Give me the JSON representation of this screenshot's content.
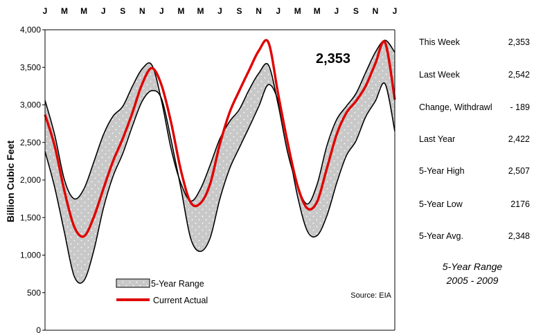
{
  "chart_data": {
    "type": "area",
    "title": "",
    "ylabel": "Billion Cubic Feet",
    "xlabel": "",
    "x_tick_labels": [
      "J",
      "M",
      "M",
      "J",
      "S",
      "N",
      "J",
      "M",
      "M",
      "J",
      "S",
      "N",
      "J",
      "M",
      "M",
      "J",
      "S",
      "N",
      "J"
    ],
    "y_ticks": [
      "0",
      "500",
      "1,000",
      "1,500",
      "2,000",
      "2,500",
      "3,000",
      "3,500",
      "4,000"
    ],
    "ylim": [
      0,
      4000
    ],
    "months_span": 36,
    "grid": false,
    "legend_position": "bottom-left",
    "series": [
      {
        "name": "5-Year Range",
        "kind": "band",
        "fill": "#c8c8c8",
        "upper": [
          [
            0,
            3060
          ],
          [
            1,
            2600
          ],
          [
            2,
            2000
          ],
          [
            3,
            1750
          ],
          [
            4,
            1880
          ],
          [
            5,
            2230
          ],
          [
            6,
            2600
          ],
          [
            7,
            2850
          ],
          [
            8,
            2980
          ],
          [
            9,
            3250
          ],
          [
            10,
            3480
          ],
          [
            11,
            3530
          ],
          [
            12,
            3050
          ],
          [
            13,
            2400
          ],
          [
            14,
            1950
          ],
          [
            15,
            1720
          ],
          [
            16,
            1880
          ],
          [
            17,
            2200
          ],
          [
            18,
            2550
          ],
          [
            19,
            2780
          ],
          [
            20,
            2940
          ],
          [
            21,
            3200
          ],
          [
            22,
            3420
          ],
          [
            23,
            3530
          ],
          [
            24,
            3000
          ],
          [
            25,
            2350
          ],
          [
            26,
            1920
          ],
          [
            27,
            1680
          ],
          [
            28,
            1940
          ],
          [
            29,
            2450
          ],
          [
            30,
            2800
          ],
          [
            31,
            2980
          ],
          [
            32,
            3150
          ],
          [
            33,
            3430
          ],
          [
            34,
            3700
          ],
          [
            35,
            3860
          ],
          [
            36,
            3700
          ]
        ],
        "lower": [
          [
            0,
            2380
          ],
          [
            1,
            1900
          ],
          [
            2,
            1300
          ],
          [
            3,
            720
          ],
          [
            4,
            660
          ],
          [
            5,
            1050
          ],
          [
            6,
            1620
          ],
          [
            7,
            2050
          ],
          [
            8,
            2350
          ],
          [
            9,
            2720
          ],
          [
            10,
            3050
          ],
          [
            11,
            3190
          ],
          [
            12,
            3080
          ],
          [
            13,
            2520
          ],
          [
            14,
            1880
          ],
          [
            15,
            1220
          ],
          [
            16,
            1050
          ],
          [
            17,
            1230
          ],
          [
            18,
            1750
          ],
          [
            19,
            2150
          ],
          [
            20,
            2430
          ],
          [
            21,
            2700
          ],
          [
            22,
            2980
          ],
          [
            23,
            3270
          ],
          [
            24,
            3050
          ],
          [
            25,
            2450
          ],
          [
            26,
            1780
          ],
          [
            27,
            1320
          ],
          [
            28,
            1260
          ],
          [
            29,
            1520
          ],
          [
            30,
            1950
          ],
          [
            31,
            2320
          ],
          [
            32,
            2520
          ],
          [
            33,
            2840
          ],
          [
            34,
            3050
          ],
          [
            35,
            3280
          ],
          [
            36,
            2650
          ]
        ]
      },
      {
        "name": "Current Actual",
        "kind": "line",
        "color": "#e00000",
        "points": [
          [
            0,
            2870
          ],
          [
            1,
            2450
          ],
          [
            2,
            1850
          ],
          [
            3,
            1380
          ],
          [
            4,
            1250
          ],
          [
            5,
            1500
          ],
          [
            6,
            1880
          ],
          [
            7,
            2250
          ],
          [
            8,
            2550
          ],
          [
            9,
            2900
          ],
          [
            10,
            3280
          ],
          [
            11,
            3490
          ],
          [
            12,
            3260
          ],
          [
            13,
            2750
          ],
          [
            14,
            2120
          ],
          [
            15,
            1700
          ],
          [
            16,
            1690
          ],
          [
            17,
            1950
          ],
          [
            18,
            2480
          ],
          [
            19,
            2900
          ],
          [
            20,
            3190
          ],
          [
            21,
            3460
          ],
          [
            22,
            3720
          ],
          [
            23,
            3830
          ],
          [
            24,
            3140
          ],
          [
            25,
            2480
          ],
          [
            26,
            1920
          ],
          [
            27,
            1620
          ],
          [
            28,
            1710
          ],
          [
            29,
            2150
          ],
          [
            30,
            2600
          ],
          [
            31,
            2890
          ],
          [
            32,
            3050
          ],
          [
            33,
            3250
          ],
          [
            34,
            3550
          ],
          [
            35,
            3830
          ],
          [
            36,
            3070
          ]
        ]
      }
    ],
    "annotations": [
      {
        "text": "2,353",
        "x": 21.5,
        "y": 3710
      },
      {
        "text": "Source:  EIA"
      }
    ],
    "legend": [
      {
        "name": "5-Year Range",
        "kind": "band"
      },
      {
        "name": "Current Actual",
        "kind": "line"
      }
    ]
  },
  "stats": [
    {
      "label": "This Week",
      "value": "2,353"
    },
    {
      "label": "Last Week",
      "value": "2,542"
    },
    {
      "label": "Change, Withdrawl",
      "value": "- 189"
    },
    {
      "label": "Last Year",
      "value": "2,422"
    },
    {
      "label": "5-Year High",
      "value": "2,507"
    },
    {
      "label": "5-Year Low",
      "value": "2176"
    },
    {
      "label": "5-Year Avg.",
      "value": "2,348"
    }
  ],
  "range_note": {
    "line1": "5-Year Range",
    "line2": "2005 - 2009"
  }
}
